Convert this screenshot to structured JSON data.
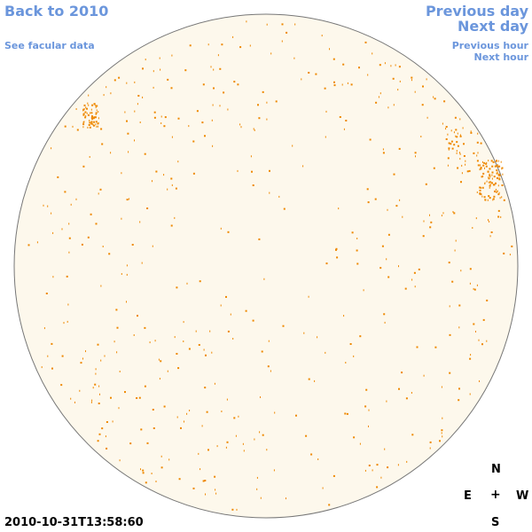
{
  "nav": {
    "back_label": "Back to 2010",
    "facular_label": "See facular data",
    "prev_day_label": "Previous day",
    "next_day_label": "Next day",
    "prev_hour_label": "Previous hour",
    "next_hour_label": "Next hour"
  },
  "timestamp": "2010-10-31T13:58:60",
  "compass": {
    "n": "N",
    "e": "E",
    "center": "+",
    "w": "W",
    "s": "S"
  },
  "colors": {
    "disk_fill": "#fdf8ec",
    "disk_outline": "#777777",
    "facula": "#ee8800",
    "link": "#6b96dc"
  }
}
